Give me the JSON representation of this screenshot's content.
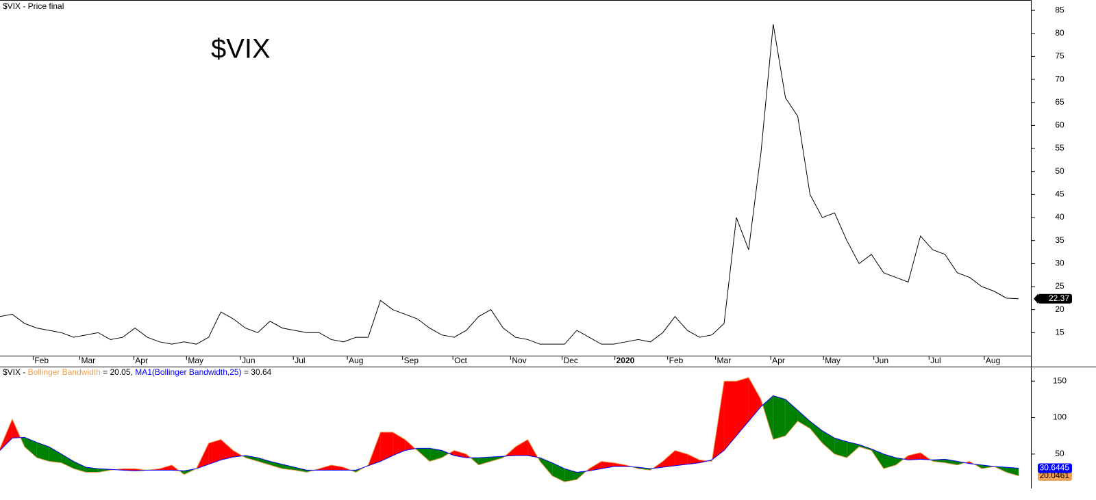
{
  "chart_data": [
    {
      "type": "line",
      "header": "$VIX - Price final",
      "title": "$VIX",
      "title_color": "#5a9a2a",
      "xlim": [
        0,
        84
      ],
      "ylim": [
        10,
        86.8
      ],
      "xticks": [
        {
          "value": 2.7,
          "label": "Feb"
        },
        {
          "value": 6.5,
          "label": "Mar"
        },
        {
          "value": 10.9,
          "label": "Apr"
        },
        {
          "value": 15.2,
          "label": "May"
        },
        {
          "value": 19.6,
          "label": "Jun"
        },
        {
          "value": 23.9,
          "label": "Jul"
        },
        {
          "value": 28.3,
          "label": "Aug"
        },
        {
          "value": 32.8,
          "label": "Sep"
        },
        {
          "value": 36.9,
          "label": "Oct"
        },
        {
          "value": 41.6,
          "label": "Nov"
        },
        {
          "value": 45.8,
          "label": "Dec"
        },
        {
          "value": 50.1,
          "label": "2020"
        },
        {
          "value": 54.4,
          "label": "Feb"
        },
        {
          "value": 58.3,
          "label": "Mar"
        },
        {
          "value": 62.8,
          "label": "Apr"
        },
        {
          "value": 67.1,
          "label": "May"
        },
        {
          "value": 71.2,
          "label": "Jun"
        },
        {
          "value": 75.7,
          "label": "Jul"
        },
        {
          "value": 80.2,
          "label": "Aug"
        }
      ],
      "yticks": [
        15,
        20,
        25,
        30,
        35,
        40,
        45,
        50,
        55,
        60,
        65,
        70,
        75,
        80,
        85
      ],
      "series": [
        {
          "color": "#000000",
          "last_label": 22.37,
          "values": [
            18.5,
            19,
            17,
            16,
            15.5,
            15,
            14,
            14.5,
            15,
            13.5,
            14,
            16,
            14,
            13,
            12.5,
            13,
            12.5,
            14,
            19.5,
            18,
            16,
            15,
            17.5,
            16,
            15.5,
            15,
            15,
            13.5,
            13,
            14,
            14,
            22,
            20,
            19,
            18,
            16,
            14.5,
            14,
            15.5,
            18.5,
            20,
            16,
            14,
            13.5,
            12.5,
            12.5,
            12.5,
            15.5,
            14,
            12.5,
            12.5,
            13,
            13.5,
            13,
            15,
            18.5,
            15.5,
            14,
            14.5,
            17,
            40,
            33,
            54,
            82,
            66,
            62,
            45,
            40,
            41,
            35,
            30,
            32,
            28,
            27,
            26,
            36,
            33,
            32,
            28,
            27,
            25,
            24,
            22.5,
            22.37
          ]
        }
      ]
    },
    {
      "type": "band-fill",
      "header_prefix": "$VIX -",
      "fill_above_color": "#ff0000",
      "fill_below_color": "#008000",
      "xlim": [
        0,
        84
      ],
      "ylim": [
        3,
        168
      ],
      "yticks": [
        50,
        100,
        150
      ],
      "series": [
        {
          "name": "Bollinger Bandwidth",
          "readout": "= 20.05,",
          "color": "#f0a050",
          "last_label": 20.0461,
          "values": [
            58,
            98,
            60,
            45,
            40,
            38,
            30,
            25,
            25,
            28,
            30,
            30,
            28,
            30,
            35,
            22,
            30,
            65,
            70,
            55,
            45,
            40,
            35,
            30,
            28,
            25,
            30,
            35,
            32,
            25,
            35,
            80,
            80,
            70,
            55,
            40,
            45,
            55,
            50,
            35,
            40,
            45,
            60,
            70,
            40,
            20,
            12,
            15,
            30,
            40,
            38,
            35,
            30,
            28,
            40,
            55,
            50,
            42,
            40,
            150,
            150,
            155,
            125,
            70,
            75,
            95,
            85,
            65,
            50,
            45,
            60,
            55,
            30,
            35,
            48,
            52,
            40,
            38,
            35,
            40,
            30,
            33,
            25,
            20.05
          ]
        },
        {
          "name": "MA1(Bollinger Bandwidth,25)",
          "readout": "= 30.64",
          "color": "#0000ff",
          "last_label": 30.6445,
          "values": [
            55,
            72,
            73,
            66,
            60,
            50,
            40,
            32,
            30,
            29,
            28,
            27,
            28,
            28,
            28,
            27,
            30,
            36,
            42,
            46,
            48,
            45,
            40,
            36,
            32,
            28,
            28,
            28,
            28,
            28,
            34,
            40,
            48,
            55,
            58,
            58,
            55,
            48,
            45,
            45,
            46,
            47,
            48,
            48,
            45,
            38,
            30,
            25,
            27,
            30,
            33,
            33,
            32,
            30,
            32,
            34,
            36,
            38,
            42,
            55,
            75,
            95,
            115,
            130,
            125,
            110,
            95,
            82,
            72,
            67,
            63,
            57,
            50,
            45,
            42,
            43,
            42,
            43,
            40,
            37,
            35,
            33,
            32,
            30.64
          ]
        }
      ]
    }
  ]
}
